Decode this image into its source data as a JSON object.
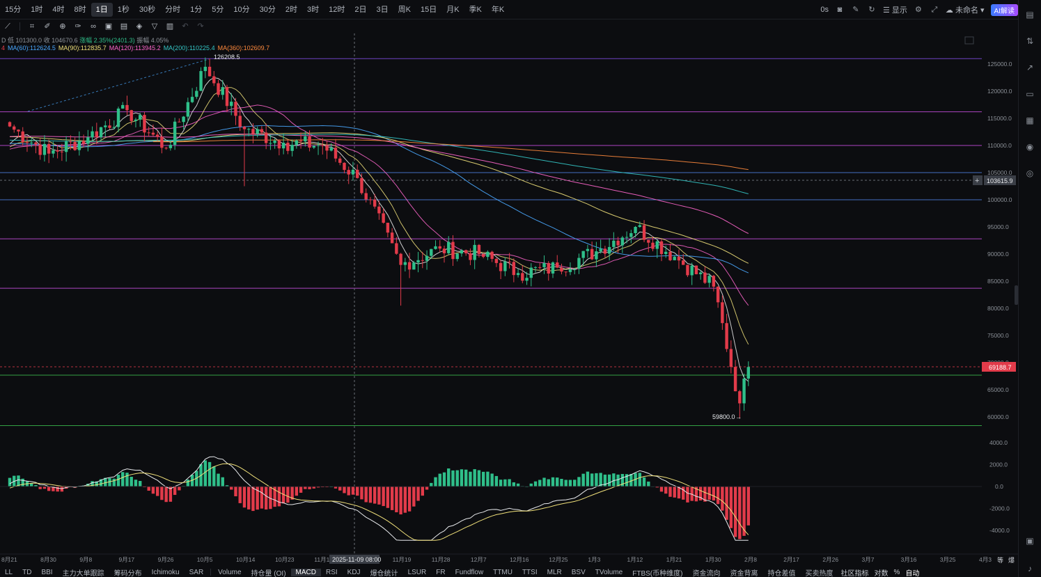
{
  "timeframes": [
    {
      "label": "15分",
      "active": false
    },
    {
      "label": "1时",
      "active": false
    },
    {
      "label": "4时",
      "active": false
    },
    {
      "label": "8时",
      "active": false
    },
    {
      "label": "1日",
      "active": true
    },
    {
      "label": "1秒",
      "active": false
    },
    {
      "label": "30秒",
      "active": false
    },
    {
      "label": "分时",
      "active": false
    },
    {
      "label": "1分",
      "active": false
    },
    {
      "label": "5分",
      "active": false
    },
    {
      "label": "10分",
      "active": false
    },
    {
      "label": "30分",
      "active": false
    },
    {
      "label": "2时",
      "active": false
    },
    {
      "label": "3时",
      "active": false
    },
    {
      "label": "12时",
      "active": false
    },
    {
      "label": "2日",
      "active": false
    },
    {
      "label": "3日",
      "active": false
    },
    {
      "label": "周K",
      "active": false
    },
    {
      "label": "15日",
      "active": false
    },
    {
      "label": "月K",
      "active": false
    },
    {
      "label": "季K",
      "active": false
    },
    {
      "label": "年K",
      "active": false
    }
  ],
  "top_right": {
    "timer": "0s",
    "display_label": "显示",
    "layout_name": "未命名",
    "ai_label": "AI解读"
  },
  "info_line1": {
    "prefix": "D",
    "low": "低 101300.0",
    "close": "收 104670.6",
    "change": "涨幅 2.35%(2401.3)",
    "amplitude": "振幅 4.05%"
  },
  "ma_line": [
    {
      "label": "4",
      "color": "#e23b4a"
    },
    {
      "label": "MA(60):112624.5",
      "color": "#4aa8ff"
    },
    {
      "label": "MA(90):112835.7",
      "color": "#f0e07a"
    },
    {
      "label": "MA(120):113945.2",
      "color": "#ff66cc"
    },
    {
      "label": "MA(200):110225.4",
      "color": "#34c6c6"
    },
    {
      "label": "MA(360):102609.7",
      "color": "#ff8a3d"
    }
  ],
  "price_axis": [
    "125000.0",
    "120000.0",
    "115000.0",
    "110000.0",
    "105000.0",
    "100000.0",
    "95000.0",
    "90000.0",
    "85000.0",
    "80000.0",
    "75000.0",
    "70000.0",
    "65000.0",
    "60000.0"
  ],
  "crosshair_price": "103615.9",
  "current_price": "69188.7",
  "high_label": "126208.5",
  "low_label": "59800.0",
  "macd_axis": [
    "4000.0",
    "2000.0",
    "0.0",
    "-2000.0",
    "-4000.0"
  ],
  "date_axis": [
    "8月21",
    "8月30",
    "9月8",
    "9月17",
    "9月26",
    "10月5",
    "10月14",
    "10月23",
    "11月1",
    "11月19",
    "11月28",
    "12月7",
    "12月16",
    "12月25",
    "1月3",
    "1月12",
    "1月21",
    "1月30",
    "2月8",
    "2月17",
    "2月26",
    "3月7",
    "3月16",
    "3月25",
    "4月3"
  ],
  "crosshair_date": "2025-11-09 08:00",
  "date_axis_right": [
    "等",
    "爆"
  ],
  "indicators_left": [
    "LL",
    "TD",
    "BBI",
    "主力大单跟踪",
    "筹码分布",
    "Ichimoku",
    "SAR"
  ],
  "indicators_sub": [
    {
      "label": "Volume",
      "active": false
    },
    {
      "label": "持仓量 (OI)",
      "active": false
    },
    {
      "label": "MACD",
      "active": true
    },
    {
      "label": "RSI",
      "active": false
    },
    {
      "label": "KDJ",
      "active": false
    },
    {
      "label": "爆仓统计",
      "active": false
    },
    {
      "label": "LSUR",
      "active": false
    },
    {
      "label": "FR",
      "active": false
    },
    {
      "label": "Fundflow",
      "active": false
    },
    {
      "label": "TTMU",
      "active": false
    },
    {
      "label": "TTSI",
      "active": false
    },
    {
      "label": "MLR",
      "active": false
    },
    {
      "label": "BSV",
      "active": false
    },
    {
      "label": "TVolume",
      "active": false
    },
    {
      "label": "FTBS(币种维度)",
      "active": false
    },
    {
      "label": "资金流向",
      "active": false
    },
    {
      "label": "资金背离",
      "active": false
    },
    {
      "label": "持仓差值",
      "active": false
    },
    {
      "label": "买卖热度",
      "active": false
    }
  ],
  "bottom_right": {
    "community": "社区指标",
    "log": "对数",
    "percent": "%",
    "auto": "自动"
  },
  "colors": {
    "up": "#2fbf8a",
    "down": "#e23b4a",
    "price_tag": "#e23b4a",
    "level_purple": "#b04bd6",
    "level_blue": "#4a7bd6",
    "level_green": "#38b24a"
  },
  "horizontal_levels": [
    {
      "price": 126000,
      "color": "#7a4bd6"
    },
    {
      "price": 116200,
      "color": "#c04bd6"
    },
    {
      "price": 110000,
      "color": "#c04bd6"
    },
    {
      "price": 105000,
      "color": "#4a7bd6"
    },
    {
      "price": 100000,
      "color": "#4a7bd6"
    },
    {
      "price": 92800,
      "color": "#c04bd6"
    },
    {
      "price": 83700,
      "color": "#c04bd6"
    },
    {
      "price": 67700,
      "color": "#38b24a"
    },
    {
      "price": 58400,
      "color": "#38b24a"
    }
  ],
  "chart_data": {
    "type": "candlestick",
    "symbol_interval": "1日",
    "y_range": [
      58000,
      128000
    ],
    "macd_range": [
      -5000,
      4500
    ],
    "anchors": [
      {
        "date": "8月21",
        "close": 113500
      },
      {
        "date": "8月30",
        "close": 108500
      },
      {
        "date": "9月8",
        "close": 111500
      },
      {
        "date": "9月17",
        "close": 116500
      },
      {
        "date": "9月26",
        "close": 109500
      },
      {
        "date": "10月5",
        "close": 124500
      },
      {
        "date": "10月14",
        "close": 113000
      },
      {
        "date": "10月23",
        "close": 110500
      },
      {
        "date": "11月1",
        "close": 110000
      },
      {
        "date": "11月9",
        "close": 104000
      },
      {
        "date": "11月19",
        "close": 88000
      },
      {
        "date": "11月28",
        "close": 91000
      },
      {
        "date": "12月7",
        "close": 90000
      },
      {
        "date": "12月16",
        "close": 86500
      },
      {
        "date": "12月25",
        "close": 87500
      },
      {
        "date": "1月3",
        "close": 90500
      },
      {
        "date": "1月12",
        "close": 95000
      },
      {
        "date": "1月21",
        "close": 89500
      },
      {
        "date": "1月30",
        "close": 84000
      },
      {
        "date": "2月5",
        "close": 62500
      },
      {
        "date": "2月7",
        "close": 69188.7
      }
    ],
    "ma_series": [
      {
        "name": "MA(60)",
        "color": "#4aa8ff"
      },
      {
        "name": "MA(90)",
        "color": "#f0e07a"
      },
      {
        "name": "MA(120)",
        "color": "#ff66cc"
      },
      {
        "name": "MA(200)",
        "color": "#34c6c6"
      },
      {
        "name": "MA(360)",
        "color": "#ff8a3d"
      }
    ]
  }
}
